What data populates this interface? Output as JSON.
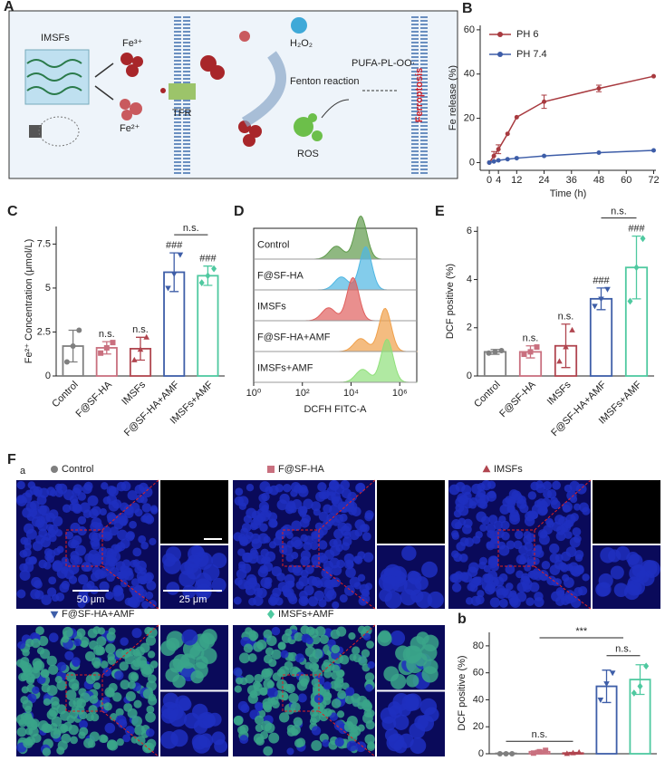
{
  "schematic": {
    "panel": "A",
    "labels": [
      "IMSFs",
      "Fe³⁺",
      "Fe²⁺",
      "TFR",
      "H₂O₂",
      "Fenton reaction",
      "PUFA-PL-OO·",
      "ROS",
      "Ferroptosis"
    ]
  },
  "chart_data": [
    {
      "type": "line",
      "panel": "B",
      "xlabel": "Time (h)",
      "ylabel": "Fe release (%)",
      "x": [
        0,
        2,
        4,
        8,
        12,
        24,
        48,
        72
      ],
      "series": [
        {
          "name": "PH 6",
          "color": "#a83a3f",
          "values": [
            0,
            3,
            6,
            13,
            20.5,
            27.5,
            33.5,
            39
          ],
          "errors": [
            null,
            2,
            2,
            null,
            null,
            3,
            1.5,
            null
          ]
        },
        {
          "name": "PH 7.4",
          "color": "#3d5da8",
          "values": [
            0,
            0.5,
            1,
            1.5,
            2,
            3,
            4.5,
            5.5
          ],
          "errors": [
            null,
            null,
            null,
            null,
            null,
            null,
            null,
            null
          ]
        }
      ],
      "xlim": [
        -4,
        73
      ],
      "xticks": [
        0,
        4,
        12,
        24,
        36,
        48,
        60,
        72
      ],
      "ylim": [
        -3.5,
        62
      ],
      "yticks": [
        0,
        20,
        40,
        60
      ],
      "legend": "upper-left"
    },
    {
      "type": "bar",
      "panel": "C",
      "ylabel": "Fe²⁺ Concentration (μmol/L)",
      "categories": [
        "Control",
        "F@SF-HA",
        "IMSFs",
        "F@SF-HA+AMF",
        "IMSFs+AMF"
      ],
      "values": [
        1.7,
        1.6,
        1.55,
        5.9,
        5.7
      ],
      "errors": [
        0.9,
        0.35,
        0.65,
        1.1,
        0.55
      ],
      "points": [
        [
          0.8,
          1.7,
          2.6
        ],
        [
          1.3,
          1.6,
          1.9
        ],
        [
          0.9,
          1.5,
          2.2
        ],
        [
          5.0,
          5.8,
          6.9
        ],
        [
          5.3,
          5.7,
          6.1
        ]
      ],
      "colors": [
        "#7f7f7f",
        "#c9707f",
        "#b0454f",
        "#3e5ea8",
        "#4fc9a0"
      ],
      "markers": [
        "circle",
        "square",
        "triangle-up",
        "triangle-down",
        "diamond"
      ],
      "annotations": [
        null,
        "n.s.",
        "n.s.",
        "###",
        "###"
      ],
      "comparisons": [
        {
          "label": "n.s.",
          "span": [
            3,
            4
          ]
        }
      ],
      "ylim": [
        0,
        8.5
      ],
      "yticks": [
        0,
        2.5,
        5,
        7.5
      ]
    },
    {
      "type": "ridgeline",
      "panel": "D",
      "xlabel": "DCFH FITC-A",
      "categories": [
        "Control",
        "F@SF-HA",
        "IMSFs",
        "F@SF-HA+AMF",
        "IMSFs+AMF"
      ],
      "values": [
        25000,
        40000,
        12000,
        250000,
        300000
      ],
      "colors": [
        "#5f9a4c",
        "#4fb7e3",
        "#e0605e",
        "#f0a04a",
        "#8fe07a"
      ],
      "log": true,
      "xlim": [
        1,
        5000000
      ],
      "xticks": [
        {
          "value": 1,
          "label": "10⁰"
        },
        {
          "value": 100,
          "label": "10²"
        },
        {
          "value": 10000,
          "label": "10⁴"
        },
        {
          "value": 1000000,
          "label": "10⁶"
        }
      ]
    },
    {
      "type": "bar",
      "panel": "E",
      "ylabel": "DCF positive (%)",
      "categories": [
        "Control",
        "F@SF-HA",
        "IMSFs",
        "F@SF-HA+AMF",
        "IMSFs+AMF"
      ],
      "values": [
        1.0,
        1.0,
        1.25,
        3.2,
        4.5
      ],
      "errors": [
        0.1,
        0.25,
        0.9,
        0.45,
        1.3
      ],
      "points": [
        [
          0.95,
          1.0,
          1.05
        ],
        [
          0.9,
          1.0,
          1.2
        ],
        [
          0.6,
          1.2,
          1.9
        ],
        [
          2.9,
          3.2,
          3.6
        ],
        [
          3.1,
          4.5,
          5.7
        ]
      ],
      "colors": [
        "#7f7f7f",
        "#c9707f",
        "#b0454f",
        "#3e5ea8",
        "#4fc9a0"
      ],
      "markers": [
        "circle",
        "square",
        "triangle-up",
        "triangle-down",
        "diamond"
      ],
      "annotations": [
        null,
        "n.s.",
        "n.s.",
        "###",
        "###"
      ],
      "comparisons": [
        {
          "label": "n.s.",
          "span": [
            3,
            4
          ]
        }
      ],
      "ylim": [
        0,
        6.2
      ],
      "yticks": [
        0,
        2,
        4,
        6
      ]
    },
    {
      "type": "bar",
      "panel": "b",
      "ylabel": "DCF positive (%)",
      "categories": [
        null,
        null,
        null,
        null,
        null
      ],
      "values": [
        0.3,
        1.5,
        0.5,
        50,
        55
      ],
      "errors": [
        0.3,
        1,
        0.5,
        12,
        11
      ],
      "points": [
        [
          0,
          0,
          0
        ],
        [
          0.5,
          1.5,
          2.5
        ],
        [
          0,
          0.5,
          1
        ],
        [
          40,
          52,
          60
        ],
        [
          45,
          50,
          65
        ]
      ],
      "colors": [
        "#7f7f7f",
        "#c9707f",
        "#b0454f",
        "#3e5ea8",
        "#4fc9a0"
      ],
      "markers": [
        "circle",
        "square",
        "triangle-up",
        "triangle-down",
        "diamond"
      ],
      "annotations": [
        null,
        null,
        null,
        null,
        null
      ],
      "comparisons": [
        {
          "label": "n.s.",
          "span": [
            0,
            2
          ]
        },
        {
          "label": "n.s.",
          "span": [
            3,
            4
          ]
        },
        {
          "label": "***",
          "span": [
            1,
            3.5
          ]
        }
      ],
      "ylim": [
        0,
        90
      ],
      "yticks": [
        0,
        20,
        40,
        60,
        80
      ]
    }
  ],
  "microscopy": {
    "panel": "F",
    "subpanel": "a",
    "groups": [
      {
        "name": "Control",
        "color": "#7f7f7f",
        "marker": "circle",
        "green": false
      },
      {
        "name": "F@SF-HA",
        "color": "#c9707f",
        "marker": "square",
        "green": false
      },
      {
        "name": "IMSFs",
        "color": "#b0454f",
        "marker": "triangle-up",
        "green": false
      },
      {
        "name": "F@SF-HA+AMF",
        "color": "#3e5ea8",
        "marker": "triangle-down",
        "green": true
      },
      {
        "name": "IMSFs+AMF",
        "color": "#4fc9a0",
        "marker": "diamond",
        "green": true
      }
    ],
    "scale_bars": [
      "50 μm",
      "25 μm"
    ]
  }
}
